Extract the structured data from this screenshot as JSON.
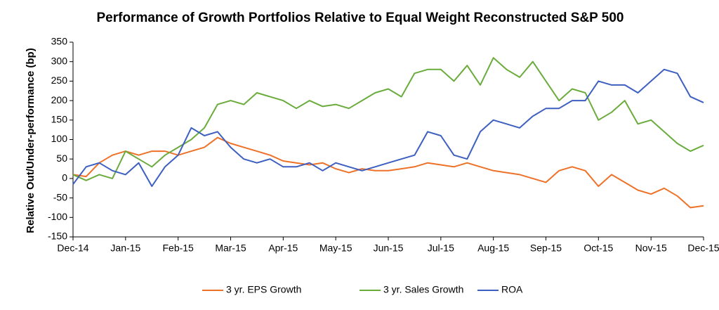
{
  "chart_data": {
    "type": "line",
    "title": "Performance of Growth Portfolios Relative to Equal Weight Reconstructed S&P 500",
    "y_label": "Relative Out/Under-performance (bp)",
    "categories": [
      "Dec-14",
      null,
      null,
      null,
      "Jan-15",
      null,
      null,
      null,
      "Feb-15",
      null,
      null,
      null,
      "Mar-15",
      null,
      null,
      null,
      "Apr-15",
      null,
      null,
      null,
      "May-15",
      null,
      null,
      null,
      "Jun-15",
      null,
      null,
      null,
      "Jul-15",
      null,
      null,
      null,
      "Aug-15",
      null,
      null,
      null,
      "Sep-15",
      null,
      null,
      null,
      "Oct-15",
      null,
      null,
      null,
      "Nov-15",
      null,
      null,
      null,
      "Dec-15"
    ],
    "series": [
      {
        "name": "3 yr. EPS Growth",
        "color": "#ee7128",
        "values": [
          10,
          5,
          40,
          60,
          70,
          60,
          70,
          70,
          60,
          70,
          80,
          105,
          90,
          80,
          70,
          60,
          45,
          40,
          35,
          40,
          25,
          15,
          25,
          20,
          20,
          25,
          30,
          40,
          35,
          30,
          40,
          30,
          20,
          15,
          10,
          0,
          -10,
          20,
          30,
          20,
          -20,
          10,
          -10,
          -30,
          -40,
          -25,
          -45,
          -75,
          -70
        ]
      },
      {
        "name": "3 yr. Sales Growth",
        "color": "#6aac3c",
        "values": [
          10,
          -5,
          10,
          0,
          70,
          50,
          30,
          60,
          80,
          100,
          130,
          190,
          200,
          190,
          220,
          210,
          200,
          180,
          200,
          185,
          190,
          180,
          200,
          220,
          230,
          210,
          270,
          280,
          280,
          250,
          290,
          240,
          310,
          280,
          260,
          300,
          250,
          200,
          230,
          220,
          150,
          170,
          200,
          140,
          150,
          120,
          90,
          70,
          85
        ]
      },
      {
        "name": "ROA",
        "color": "#3d5fc0",
        "values": [
          -15,
          30,
          40,
          20,
          10,
          40,
          -20,
          30,
          60,
          130,
          110,
          120,
          80,
          50,
          40,
          50,
          30,
          30,
          40,
          20,
          40,
          30,
          20,
          30,
          40,
          50,
          60,
          120,
          110,
          60,
          50,
          120,
          150,
          140,
          130,
          160,
          180,
          180,
          200,
          200,
          250,
          240,
          240,
          220,
          250,
          280,
          270,
          210,
          195
        ]
      }
    ],
    "ylim": [
      -150,
      350
    ],
    "yticks": [
      -150,
      -100,
      -50,
      0,
      50,
      100,
      150,
      200,
      250,
      300,
      350
    ],
    "grid": false,
    "legend": "bottom"
  }
}
